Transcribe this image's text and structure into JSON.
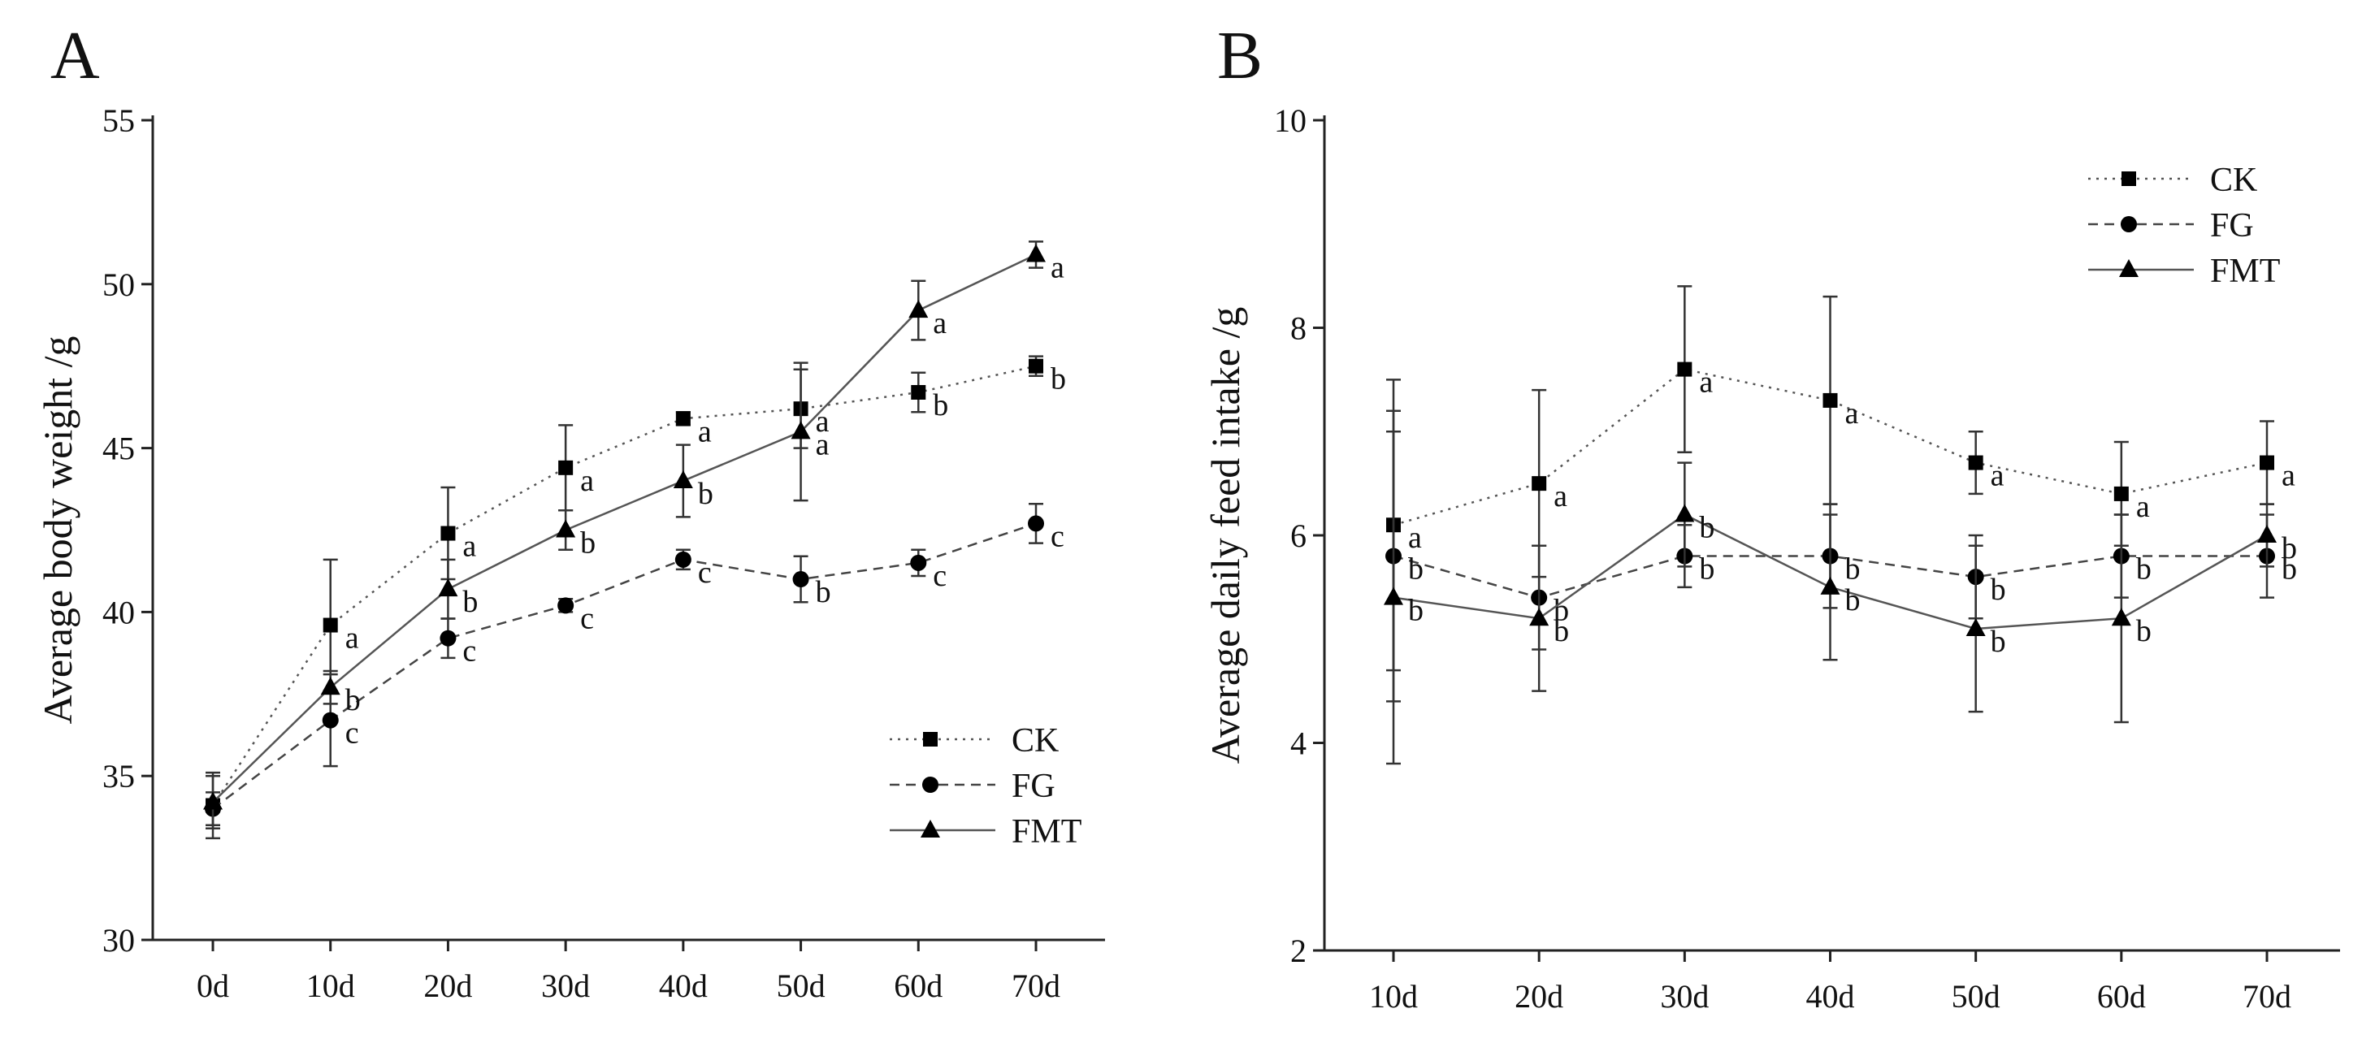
{
  "chart_data": [
    {
      "type": "line",
      "panel_label": "A",
      "ylabel": "Average body weight /g",
      "xlabel": "",
      "categories": [
        "0d",
        "10d",
        "20d",
        "30d",
        "40d",
        "50d",
        "60d",
        "70d"
      ],
      "ylim": [
        30,
        55
      ],
      "yticks": [
        "30",
        "35",
        "40",
        "45",
        "50",
        "55"
      ],
      "legend_position": "bottom-right",
      "series": [
        {
          "name": "CK",
          "marker": "square",
          "style": "dotted",
          "values": [
            34.1,
            39.6,
            42.4,
            44.4,
            45.9,
            46.2,
            46.7,
            47.5
          ],
          "errors": [
            1.0,
            2.0,
            1.4,
            1.3,
            0.2,
            1.2,
            0.6,
            0.3
          ],
          "labels": [
            "",
            "a",
            "a",
            "a",
            "a",
            "a",
            "b",
            "b"
          ]
        },
        {
          "name": "FG",
          "marker": "circle",
          "style": "dashed",
          "values": [
            34.0,
            36.7,
            39.2,
            40.2,
            41.6,
            41.0,
            41.5,
            42.7
          ],
          "errors": [
            0.5,
            1.4,
            0.6,
            0.2,
            0.3,
            0.7,
            0.4,
            0.6
          ],
          "labels": [
            "",
            "c",
            "c",
            "c",
            "c",
            "b",
            "c",
            "c"
          ]
        },
        {
          "name": "FMT",
          "marker": "triangle",
          "style": "solid",
          "values": [
            34.2,
            37.7,
            40.7,
            42.5,
            44.0,
            45.5,
            49.2,
            50.9
          ],
          "errors": [
            0.8,
            0.5,
            0.9,
            0.6,
            1.1,
            2.1,
            0.9,
            0.4
          ],
          "labels": [
            "",
            "b",
            "b",
            "b",
            "b",
            "a",
            "a",
            "a"
          ]
        }
      ]
    },
    {
      "type": "line",
      "panel_label": "B",
      "ylabel": "Average daily feed intake /g",
      "xlabel": "",
      "categories": [
        "10d",
        "20d",
        "30d",
        "40d",
        "50d",
        "60d",
        "70d"
      ],
      "ylim": [
        2,
        10
      ],
      "yticks": [
        "2",
        "4",
        "6",
        "8",
        "10"
      ],
      "legend_position": "top-right",
      "series": [
        {
          "name": "CK",
          "marker": "square",
          "style": "dotted",
          "values": [
            6.1,
            6.5,
            7.6,
            7.3,
            6.7,
            6.4,
            6.7
          ],
          "errors": [
            1.4,
            0.9,
            0.8,
            1.0,
            0.3,
            0.5,
            0.4
          ],
          "labels": [
            "a",
            "a",
            "a",
            "a",
            "a",
            "a",
            "a"
          ]
        },
        {
          "name": "FG",
          "marker": "circle",
          "style": "dashed",
          "values": [
            5.8,
            5.4,
            5.8,
            5.8,
            5.6,
            5.8,
            5.8
          ],
          "errors": [
            1.4,
            0.5,
            0.3,
            0.5,
            0.4,
            0.4,
            0.4
          ],
          "labels": [
            "b",
            "b",
            "b",
            "b",
            "b",
            "b",
            "b"
          ]
        },
        {
          "name": "FMT",
          "marker": "triangle",
          "style": "solid",
          "values": [
            5.4,
            5.2,
            6.2,
            5.5,
            5.1,
            5.2,
            6.0
          ],
          "errors": [
            1.6,
            0.7,
            0.5,
            0.7,
            0.8,
            1.0,
            0.3
          ],
          "labels": [
            "b",
            "b",
            "b",
            "b",
            "b",
            "b",
            "b"
          ]
        }
      ]
    }
  ]
}
